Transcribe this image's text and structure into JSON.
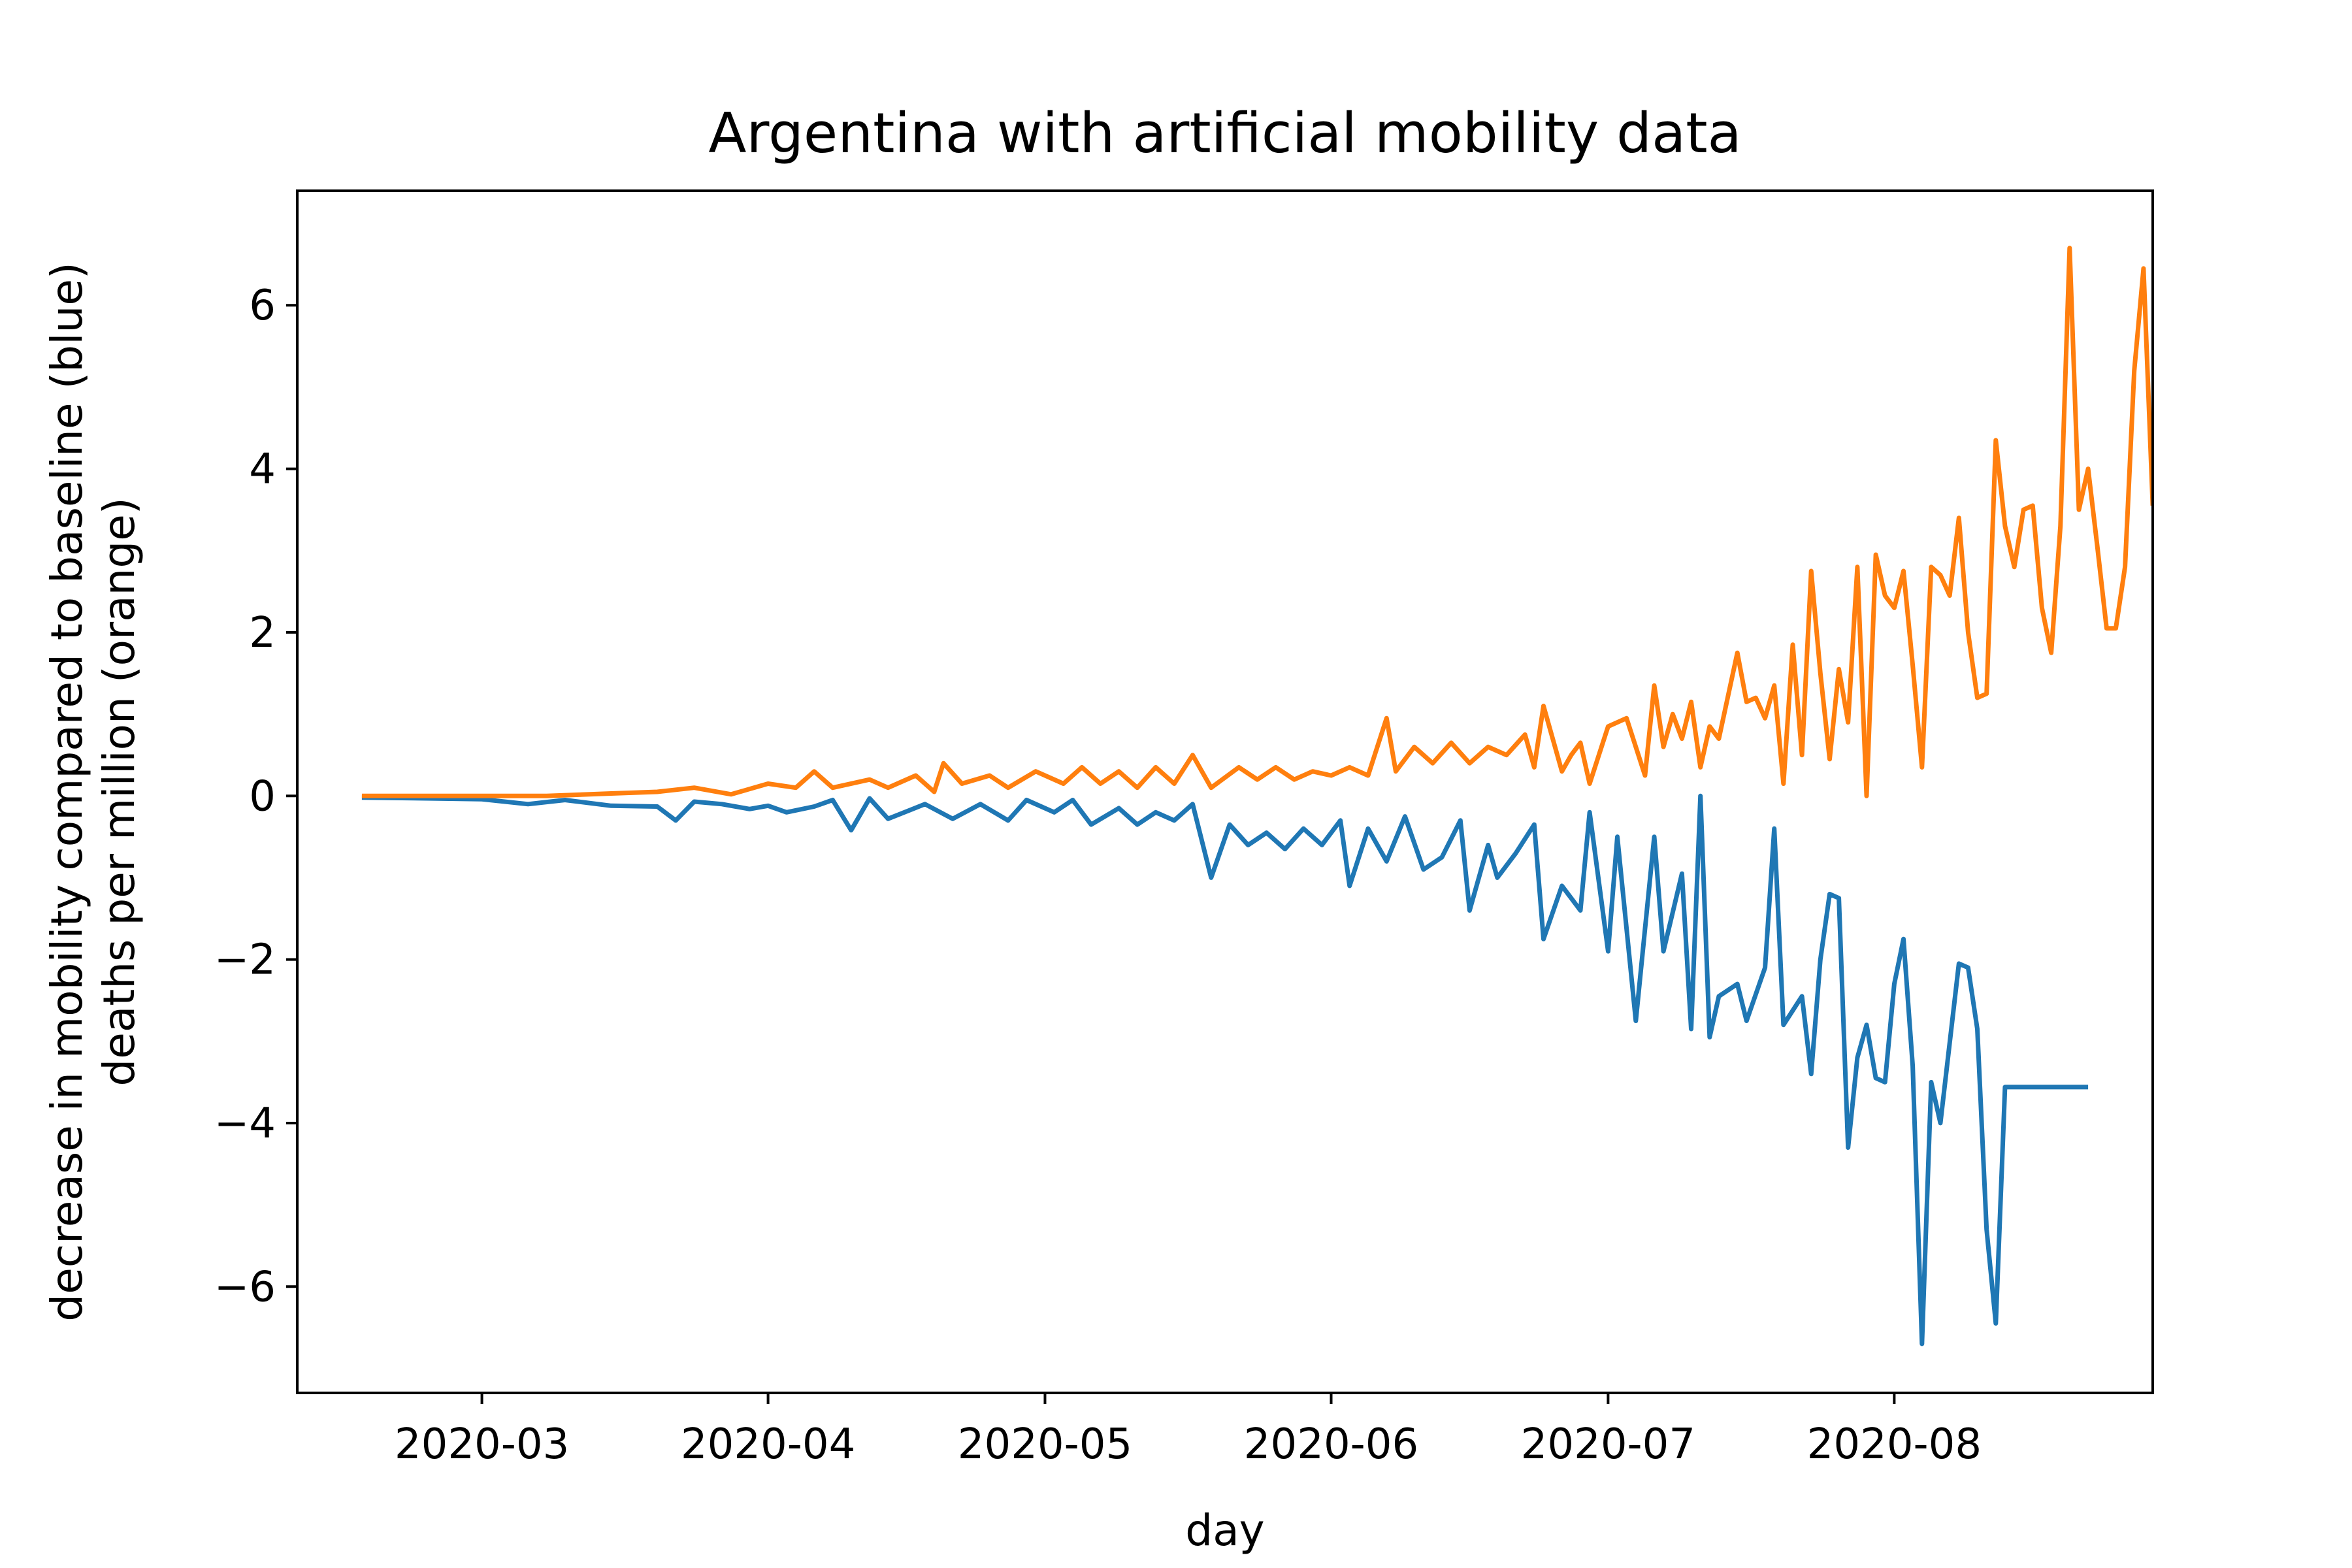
{
  "chart_data": {
    "type": "line",
    "title": "Argentina with artificial mobility data",
    "xlabel": "day",
    "ylabel_lines": [
      "decrease in mobility compared to baseline (blue)",
      "deaths per million (orange)"
    ],
    "x_start": "2020-02-17",
    "x_end": "2020-08-22",
    "xlim": [
      "2020-02-10",
      "2020-08-29"
    ],
    "ylim": [
      -7.3,
      7.4
    ],
    "x_ticks": [
      "2020-03",
      "2020-04",
      "2020-05",
      "2020-06",
      "2020-07",
      "2020-08"
    ],
    "y_ticks": [
      -6,
      -4,
      -2,
      0,
      2,
      4,
      6
    ],
    "y_tick_labels": [
      "−6",
      "−4",
      "−2",
      "0",
      "2",
      "4",
      "6"
    ],
    "series": [
      {
        "color": "#1f77b4",
        "points": [
          [
            "2020-02-17",
            -0.02
          ],
          [
            "2020-02-24",
            -0.03
          ],
          [
            "2020-03-01",
            -0.04
          ],
          [
            "2020-03-06",
            -0.1
          ],
          [
            "2020-03-10",
            -0.05
          ],
          [
            "2020-03-15",
            -0.12
          ],
          [
            "2020-03-20",
            -0.13
          ],
          [
            "2020-03-22",
            -0.3
          ],
          [
            "2020-03-24",
            -0.07
          ],
          [
            "2020-03-27",
            -0.1
          ],
          [
            "2020-03-30",
            -0.16
          ],
          [
            "2020-04-01",
            -0.12
          ],
          [
            "2020-04-03",
            -0.2
          ],
          [
            "2020-04-06",
            -0.13
          ],
          [
            "2020-04-08",
            -0.05
          ],
          [
            "2020-04-10",
            -0.42
          ],
          [
            "2020-04-12",
            -0.03
          ],
          [
            "2020-04-14",
            -0.28
          ],
          [
            "2020-04-18",
            -0.1
          ],
          [
            "2020-04-21",
            -0.28
          ],
          [
            "2020-04-24",
            -0.1
          ],
          [
            "2020-04-27",
            -0.3
          ],
          [
            "2020-04-29",
            -0.05
          ],
          [
            "2020-05-02",
            -0.2
          ],
          [
            "2020-05-04",
            -0.05
          ],
          [
            "2020-05-06",
            -0.35
          ],
          [
            "2020-05-09",
            -0.15
          ],
          [
            "2020-05-11",
            -0.35
          ],
          [
            "2020-05-13",
            -0.2
          ],
          [
            "2020-05-15",
            -0.3
          ],
          [
            "2020-05-17",
            -0.1
          ],
          [
            "2020-05-19",
            -1.0
          ],
          [
            "2020-05-21",
            -0.35
          ],
          [
            "2020-05-23",
            -0.6
          ],
          [
            "2020-05-25",
            -0.45
          ],
          [
            "2020-05-27",
            -0.65
          ],
          [
            "2020-05-29",
            -0.4
          ],
          [
            "2020-05-31",
            -0.6
          ],
          [
            "2020-06-02",
            -0.3
          ],
          [
            "2020-06-03",
            -1.1
          ],
          [
            "2020-06-05",
            -0.4
          ],
          [
            "2020-06-07",
            -0.8
          ],
          [
            "2020-06-09",
            -0.25
          ],
          [
            "2020-06-11",
            -0.9
          ],
          [
            "2020-06-13",
            -0.75
          ],
          [
            "2020-06-15",
            -0.3
          ],
          [
            "2020-06-16",
            -1.4
          ],
          [
            "2020-06-18",
            -0.6
          ],
          [
            "2020-06-19",
            -1.0
          ],
          [
            "2020-06-21",
            -0.7
          ],
          [
            "2020-06-23",
            -0.35
          ],
          [
            "2020-06-24",
            -1.75
          ],
          [
            "2020-06-26",
            -1.1
          ],
          [
            "2020-06-28",
            -1.4
          ],
          [
            "2020-06-29",
            -0.2
          ],
          [
            "2020-07-01",
            -1.9
          ],
          [
            "2020-07-02",
            -0.5
          ],
          [
            "2020-07-04",
            -2.75
          ],
          [
            "2020-07-06",
            -0.5
          ],
          [
            "2020-07-07",
            -1.9
          ],
          [
            "2020-07-09",
            -0.95
          ],
          [
            "2020-07-10",
            -2.85
          ],
          [
            "2020-07-11",
            0.0
          ],
          [
            "2020-07-12",
            -2.95
          ],
          [
            "2020-07-13",
            -2.45
          ],
          [
            "2020-07-15",
            -2.3
          ],
          [
            "2020-07-16",
            -2.75
          ],
          [
            "2020-07-18",
            -2.1
          ],
          [
            "2020-07-19",
            -0.4
          ],
          [
            "2020-07-20",
            -2.8
          ],
          [
            "2020-07-22",
            -2.45
          ],
          [
            "2020-07-23",
            -3.4
          ],
          [
            "2020-07-24",
            -2.0
          ],
          [
            "2020-07-25",
            -1.2
          ],
          [
            "2020-07-26",
            -1.25
          ],
          [
            "2020-07-27",
            -4.3
          ],
          [
            "2020-07-28",
            -3.2
          ],
          [
            "2020-07-29",
            -2.8
          ],
          [
            "2020-07-30",
            -3.45
          ],
          [
            "2020-07-31",
            -3.5
          ],
          [
            "2020-08-01",
            -2.3
          ],
          [
            "2020-08-02",
            -1.75
          ],
          [
            "2020-08-03",
            -3.3
          ],
          [
            "2020-08-04",
            -6.7
          ],
          [
            "2020-08-05",
            -3.5
          ],
          [
            "2020-08-06",
            -4.0
          ],
          [
            "2020-08-08",
            -2.05
          ],
          [
            "2020-08-09",
            -2.1
          ],
          [
            "2020-08-10",
            -2.85
          ],
          [
            "2020-08-11",
            -5.3
          ],
          [
            "2020-08-12",
            -6.45
          ],
          [
            "2020-08-13",
            -3.56
          ],
          [
            "2020-08-22",
            -3.56
          ]
        ]
      },
      {
        "color": "#ff7f0e",
        "points": [
          [
            "2020-02-17",
            0.0
          ],
          [
            "2020-03-08",
            0.0
          ],
          [
            "2020-03-15",
            0.03
          ],
          [
            "2020-03-20",
            0.05
          ],
          [
            "2020-03-24",
            0.1
          ],
          [
            "2020-03-28",
            0.02
          ],
          [
            "2020-04-01",
            0.15
          ],
          [
            "2020-04-04",
            0.1
          ],
          [
            "2020-04-06",
            0.3
          ],
          [
            "2020-04-08",
            0.1
          ],
          [
            "2020-04-12",
            0.2
          ],
          [
            "2020-04-14",
            0.1
          ],
          [
            "2020-04-17",
            0.25
          ],
          [
            "2020-04-19",
            0.05
          ],
          [
            "2020-04-20",
            0.4
          ],
          [
            "2020-04-22",
            0.15
          ],
          [
            "2020-04-25",
            0.25
          ],
          [
            "2020-04-27",
            0.1
          ],
          [
            "2020-04-30",
            0.3
          ],
          [
            "2020-05-03",
            0.15
          ],
          [
            "2020-05-05",
            0.35
          ],
          [
            "2020-05-07",
            0.15
          ],
          [
            "2020-05-09",
            0.3
          ],
          [
            "2020-05-11",
            0.1
          ],
          [
            "2020-05-13",
            0.35
          ],
          [
            "2020-05-15",
            0.15
          ],
          [
            "2020-05-17",
            0.5
          ],
          [
            "2020-05-19",
            0.1
          ],
          [
            "2020-05-22",
            0.35
          ],
          [
            "2020-05-24",
            0.2
          ],
          [
            "2020-05-26",
            0.35
          ],
          [
            "2020-05-28",
            0.2
          ],
          [
            "2020-05-30",
            0.3
          ],
          [
            "2020-06-01",
            0.25
          ],
          [
            "2020-06-03",
            0.35
          ],
          [
            "2020-06-05",
            0.25
          ],
          [
            "2020-06-07",
            0.95
          ],
          [
            "2020-06-08",
            0.3
          ],
          [
            "2020-06-10",
            0.6
          ],
          [
            "2020-06-12",
            0.4
          ],
          [
            "2020-06-14",
            0.65
          ],
          [
            "2020-06-16",
            0.4
          ],
          [
            "2020-06-18",
            0.6
          ],
          [
            "2020-06-20",
            0.5
          ],
          [
            "2020-06-22",
            0.75
          ],
          [
            "2020-06-23",
            0.35
          ],
          [
            "2020-06-24",
            1.1
          ],
          [
            "2020-06-26",
            0.3
          ],
          [
            "2020-06-27",
            0.5
          ],
          [
            "2020-06-28",
            0.65
          ],
          [
            "2020-06-29",
            0.15
          ],
          [
            "2020-07-01",
            0.85
          ],
          [
            "2020-07-03",
            0.95
          ],
          [
            "2020-07-05",
            0.25
          ],
          [
            "2020-07-06",
            1.35
          ],
          [
            "2020-07-07",
            0.6
          ],
          [
            "2020-07-08",
            1.0
          ],
          [
            "2020-07-09",
            0.7
          ],
          [
            "2020-07-10",
            1.15
          ],
          [
            "2020-07-11",
            0.35
          ],
          [
            "2020-07-12",
            0.85
          ],
          [
            "2020-07-13",
            0.7
          ],
          [
            "2020-07-15",
            1.75
          ],
          [
            "2020-07-16",
            1.15
          ],
          [
            "2020-07-17",
            1.2
          ],
          [
            "2020-07-18",
            0.95
          ],
          [
            "2020-07-19",
            1.35
          ],
          [
            "2020-07-20",
            0.15
          ],
          [
            "2020-07-21",
            1.85
          ],
          [
            "2020-07-22",
            0.5
          ],
          [
            "2020-07-23",
            2.75
          ],
          [
            "2020-07-24",
            1.5
          ],
          [
            "2020-07-25",
            0.45
          ],
          [
            "2020-07-26",
            1.55
          ],
          [
            "2020-07-27",
            0.9
          ],
          [
            "2020-07-28",
            2.8
          ],
          [
            "2020-07-29",
            0.0
          ],
          [
            "2020-07-30",
            2.95
          ],
          [
            "2020-07-31",
            2.45
          ],
          [
            "2020-08-01",
            2.3
          ],
          [
            "2020-08-02",
            2.75
          ],
          [
            "2020-08-03",
            1.6
          ],
          [
            "2020-08-04",
            0.35
          ],
          [
            "2020-08-05",
            2.8
          ],
          [
            "2020-08-06",
            2.7
          ],
          [
            "2020-08-07",
            2.45
          ],
          [
            "2020-08-08",
            3.4
          ],
          [
            "2020-08-09",
            2.0
          ],
          [
            "2020-08-10",
            1.2
          ],
          [
            "2020-08-11",
            1.25
          ],
          [
            "2020-08-12",
            4.35
          ],
          [
            "2020-08-13",
            3.3
          ],
          [
            "2020-08-14",
            2.8
          ],
          [
            "2020-08-15",
            3.5
          ],
          [
            "2020-08-16",
            3.55
          ],
          [
            "2020-08-17",
            2.3
          ],
          [
            "2020-08-18",
            1.75
          ],
          [
            "2020-08-19",
            3.3
          ],
          [
            "2020-08-20",
            6.7
          ],
          [
            "2020-08-21",
            3.5
          ],
          [
            "2020-08-22",
            4.0
          ],
          [
            "2020-08-23",
            3.05
          ],
          [
            "2020-08-24",
            2.05
          ],
          [
            "2020-08-25",
            2.05
          ],
          [
            "2020-08-26",
            2.8
          ],
          [
            "2020-08-27",
            5.2
          ],
          [
            "2020-08-28",
            6.45
          ],
          [
            "2020-08-29",
            3.55
          ]
        ]
      }
    ]
  }
}
